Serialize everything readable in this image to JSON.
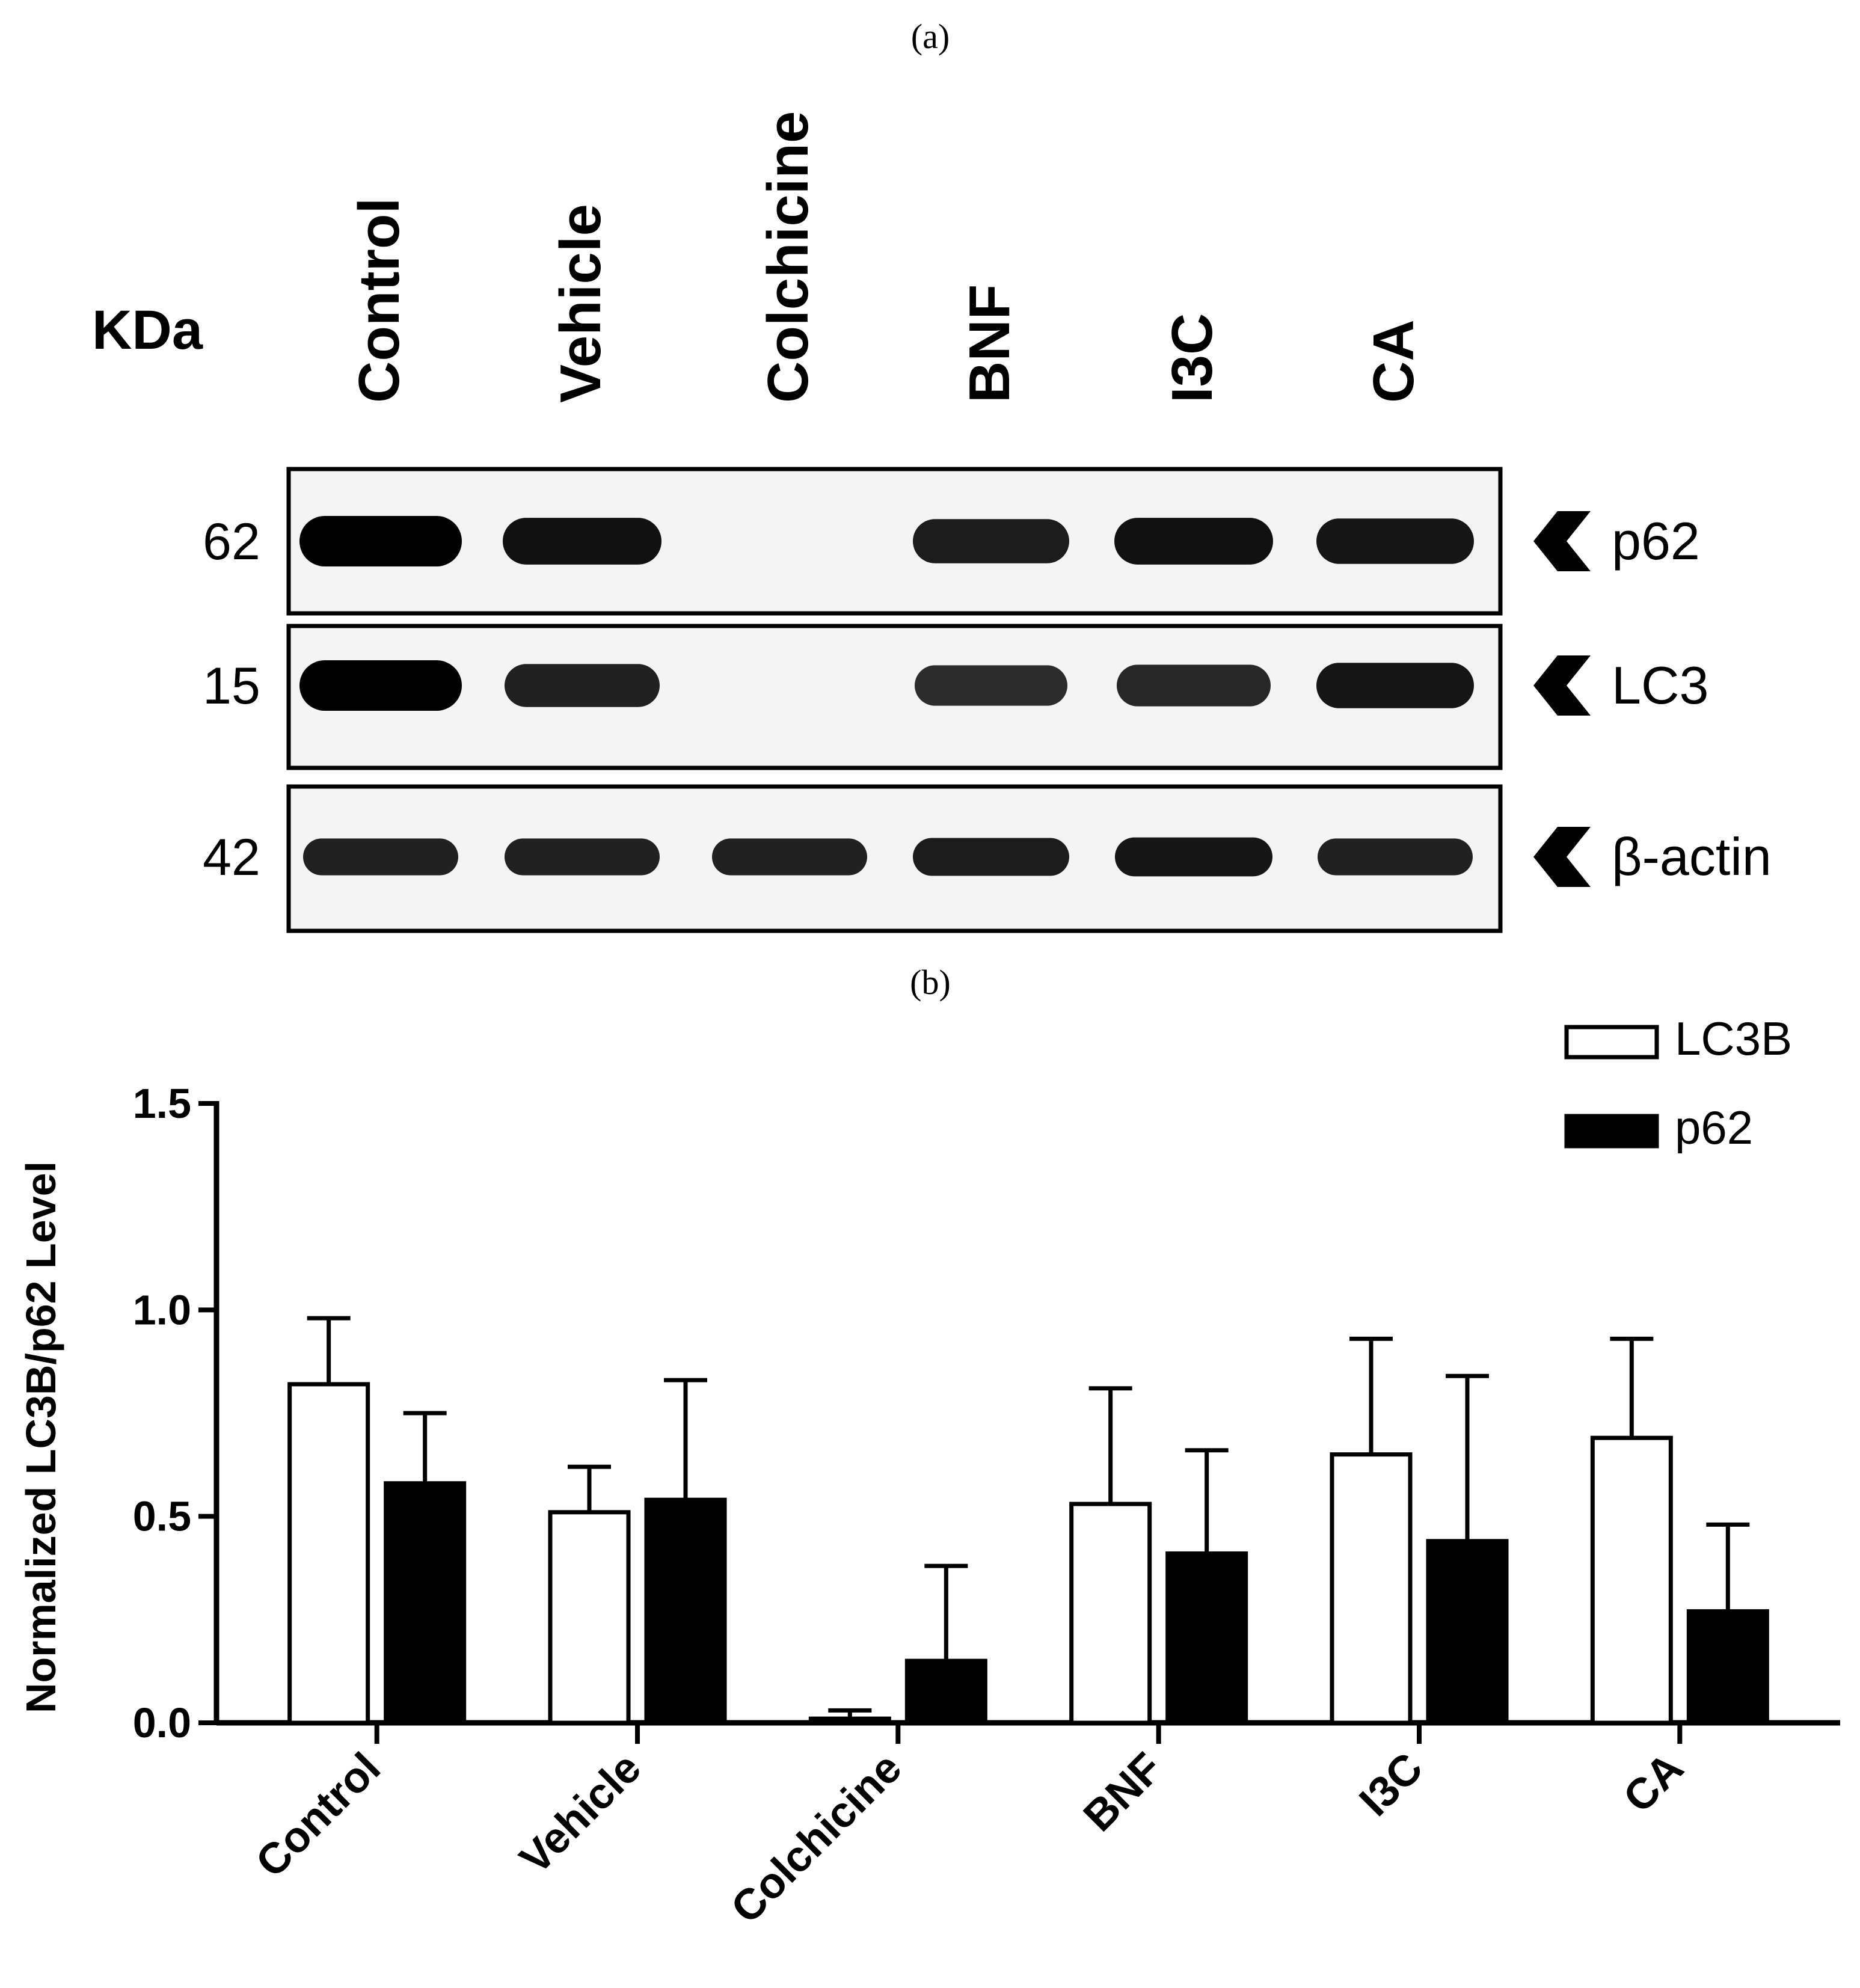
{
  "panels": {
    "a": "(a)",
    "b": "(b)"
  },
  "blot": {
    "kda_label": "KDa",
    "lanes": [
      "Control",
      "Vehicle",
      "Colchicine",
      "BNF",
      "I3C",
      "CA"
    ],
    "rows": [
      {
        "kda": "62",
        "protein": "p62",
        "band_intensity": [
          1.0,
          0.85,
          0.0,
          0.75,
          0.85,
          0.8
        ]
      },
      {
        "kda": "15",
        "protein": "LC3",
        "band_intensity": [
          1.0,
          0.7,
          0.0,
          0.6,
          0.65,
          0.8
        ]
      },
      {
        "kda": "42",
        "protein": "β-actin",
        "band_intensity": [
          0.7,
          0.7,
          0.7,
          0.75,
          0.8,
          0.7
        ]
      }
    ]
  },
  "chart_data": {
    "type": "bar",
    "ylabel": "Normalized LC3B/p62 Level",
    "ylim": [
      0,
      1.5
    ],
    "yticks": [
      "0.0",
      "0.5",
      "1.0",
      "1.5"
    ],
    "categories": [
      "Control",
      "Vehicle",
      "Colchicine",
      "BNF",
      "I3C",
      "CA"
    ],
    "series": [
      {
        "name": "LC3B",
        "fill": "#ffffff",
        "values": [
          0.82,
          0.51,
          0.01,
          0.53,
          0.65,
          0.69
        ],
        "errors": [
          0.16,
          0.11,
          0.02,
          0.28,
          0.28,
          0.24
        ]
      },
      {
        "name": "p62",
        "fill": "#000000",
        "values": [
          0.58,
          0.54,
          0.15,
          0.41,
          0.44,
          0.27
        ],
        "errors": [
          0.17,
          0.29,
          0.23,
          0.25,
          0.4,
          0.21
        ]
      }
    ],
    "grid": false,
    "legend_position": "top-right"
  }
}
